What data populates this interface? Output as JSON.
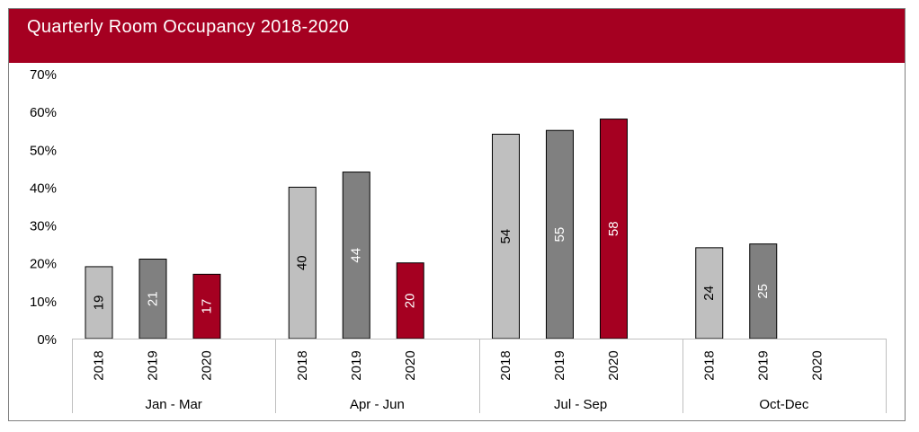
{
  "chart_data": {
    "type": "bar",
    "title": "Quarterly Room Occupancy 2018-2020",
    "groups": [
      "Jan - Mar",
      "Apr - Jun",
      "Jul - Sep",
      "Oct-Dec"
    ],
    "series_labels": [
      "2018",
      "2019",
      "2020"
    ],
    "series_colors": [
      "#bfbfbf",
      "#808080",
      "#a50021"
    ],
    "label_colors": [
      "#000000",
      "#ffffff",
      "#ffffff"
    ],
    "values": [
      [
        19,
        21,
        17
      ],
      [
        40,
        44,
        20
      ],
      [
        54,
        55,
        58
      ],
      [
        24,
        25,
        null
      ]
    ],
    "yticks": [
      "0%",
      "10%",
      "20%",
      "30%",
      "40%",
      "50%",
      "60%",
      "70%"
    ],
    "ylim": [
      0,
      70
    ],
    "grid": false
  }
}
